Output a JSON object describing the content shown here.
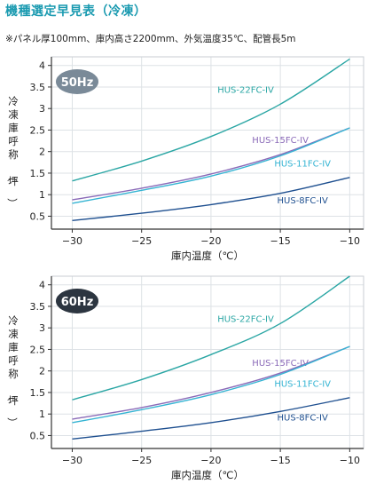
{
  "header": {
    "title": "機種選定早見表（冷凍）",
    "note": "※パネル厚100mm、庫内高さ2200mm、外気温度35℃、配管長5m"
  },
  "colors": {
    "HUS-22FC-IV": "#2aa6a4",
    "HUS-15FC-IV": "#8a6ab8",
    "HUS-11FC-IV": "#35b4d3",
    "HUS-8FC-IV": "#1f5090",
    "badge50": "#7a8a98",
    "badge60": "#2c3540",
    "grid": "#dde2e6",
    "axis": "#333333"
  },
  "chart_data": [
    {
      "type": "line",
      "badge": "50Hz",
      "xlabel": "庫内温度（℃）",
      "ylabel": "冷凍庫呼称（坪）",
      "xlim": [
        -31.5,
        -9
      ],
      "ylim": [
        0.2,
        4.2
      ],
      "xticks": [
        -30,
        -25,
        -20,
        -15,
        -10
      ],
      "xtick_labels": [
        "−30",
        "−25",
        "−20",
        "−15",
        "−10"
      ],
      "yticks": [
        0.5,
        1,
        1.5,
        2,
        2.5,
        3,
        3.5,
        4
      ],
      "ytick_labels": [
        "0.5",
        "1",
        "1.5",
        "2",
        "2.5",
        "3",
        "3.5",
        "4"
      ],
      "grid": true,
      "series": [
        {
          "name": "HUS-22FC-IV",
          "x": [
            -30,
            -25,
            -20,
            -15,
            -10
          ],
          "y": [
            1.32,
            1.78,
            2.35,
            3.1,
            4.15
          ],
          "label_at": [
            -17.5,
            3.45
          ]
        },
        {
          "name": "HUS-15FC-IV",
          "x": [
            -30,
            -25,
            -20,
            -15,
            -10
          ],
          "y": [
            0.88,
            1.15,
            1.48,
            1.93,
            2.55
          ],
          "label_at": [
            -15,
            2.28
          ]
        },
        {
          "name": "HUS-11FC-IV",
          "x": [
            -30,
            -25,
            -20,
            -15,
            -10
          ],
          "y": [
            0.8,
            1.1,
            1.43,
            1.9,
            2.55
          ],
          "label_at": [
            -13.4,
            1.74
          ]
        },
        {
          "name": "HUS-8FC-IV",
          "x": [
            -30,
            -25,
            -20,
            -15,
            -10
          ],
          "y": [
            0.4,
            0.57,
            0.77,
            1.03,
            1.4
          ],
          "label_at": [
            -13.4,
            0.88
          ]
        }
      ]
    },
    {
      "type": "line",
      "badge": "60Hz",
      "xlabel": "庫内温度（℃）",
      "ylabel": "冷凍庫呼称（坪）",
      "xlim": [
        -31.5,
        -9
      ],
      "ylim": [
        0.2,
        4.2
      ],
      "xticks": [
        -30,
        -25,
        -20,
        -15,
        -10
      ],
      "xtick_labels": [
        "−30",
        "−25",
        "−20",
        "−15",
        "−10"
      ],
      "yticks": [
        0.5,
        1,
        1.5,
        2,
        2.5,
        3,
        3.5,
        4
      ],
      "ytick_labels": [
        "0.5",
        "1",
        "1.5",
        "2",
        "2.5",
        "3",
        "3.5",
        "4"
      ],
      "grid": true,
      "series": [
        {
          "name": "HUS-22FC-IV",
          "x": [
            -30,
            -25,
            -20,
            -15,
            -10
          ],
          "y": [
            1.33,
            1.8,
            2.38,
            3.1,
            4.2
          ],
          "label_at": [
            -17.5,
            3.22
          ]
        },
        {
          "name": "HUS-15FC-IV",
          "x": [
            -30,
            -25,
            -20,
            -15,
            -10
          ],
          "y": [
            0.88,
            1.15,
            1.5,
            1.95,
            2.57
          ],
          "label_at": [
            -15,
            2.2
          ]
        },
        {
          "name": "HUS-11FC-IV",
          "x": [
            -30,
            -25,
            -20,
            -15,
            -10
          ],
          "y": [
            0.8,
            1.1,
            1.45,
            1.92,
            2.57
          ],
          "label_at": [
            -13.4,
            1.72
          ]
        },
        {
          "name": "HUS-8FC-IV",
          "x": [
            -30,
            -25,
            -20,
            -15,
            -10
          ],
          "y": [
            0.42,
            0.6,
            0.8,
            1.06,
            1.38
          ],
          "label_at": [
            -13.4,
            0.93
          ]
        }
      ]
    }
  ]
}
